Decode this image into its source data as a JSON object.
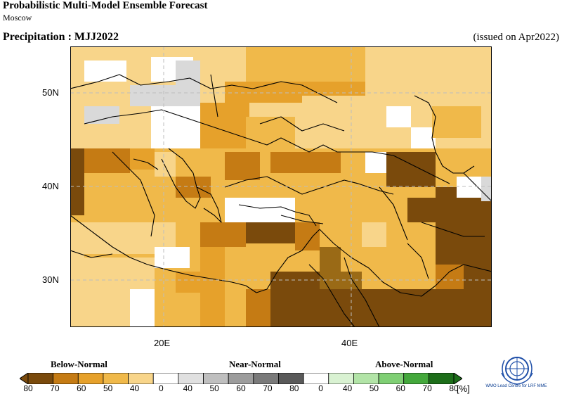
{
  "header": {
    "title": "Probabilistic Multi-Model Ensemble Forecast",
    "subtitle": "Moscow",
    "variable": "Precipitation : MJJ2022",
    "issued": "(issued on Apr2022)"
  },
  "axes": {
    "lon_labels": [
      {
        "text": "20E",
        "lon": 20
      },
      {
        "text": "40E",
        "lon": 40
      }
    ],
    "lat_labels": [
      {
        "text": "50N",
        "lat": 50
      },
      {
        "text": "40N",
        "lat": 40
      },
      {
        "text": "30N",
        "lat": 30
      }
    ],
    "lon_range": [
      10,
      55
    ],
    "lat_range": [
      25,
      55
    ]
  },
  "legend": {
    "categories": [
      "Below-Normal",
      "Near-Normal",
      "Above-Normal"
    ],
    "ticks": [
      "80",
      "70",
      "60",
      "50",
      "40",
      "0",
      "40",
      "50",
      "60",
      "70",
      "80",
      "0",
      "40",
      "50",
      "60",
      "70",
      "80"
    ],
    "unit": "[%]",
    "colors": [
      "#7a4a0c",
      "#c57b14",
      "#e6a12b",
      "#f0b94a",
      "#f8d58a",
      "#ffffff",
      "#e0e0e0",
      "#bfbfbf",
      "#9c9c9c",
      "#7a7a7a",
      "#5a5a5a",
      "#ffffff",
      "#d9f2d2",
      "#b2e4a7",
      "#7fcf74",
      "#44a83c",
      "#1d6e1a"
    ]
  },
  "logo": {
    "caption": "WMO Lead Centre for LRF MME"
  }
}
